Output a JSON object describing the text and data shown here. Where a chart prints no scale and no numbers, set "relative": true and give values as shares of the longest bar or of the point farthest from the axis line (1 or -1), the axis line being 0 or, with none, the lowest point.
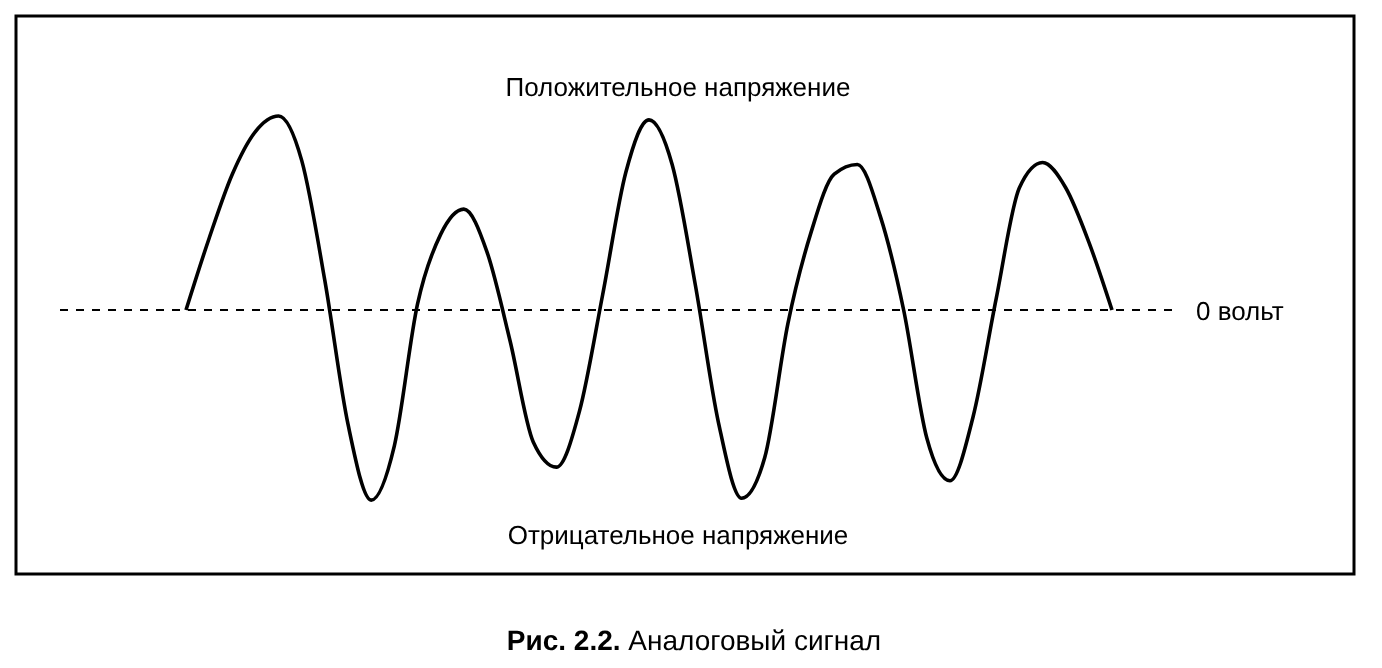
{
  "chart_data": {
    "type": "line",
    "relative": true,
    "title": "Рис. 2.2. Аналоговый сигнал",
    "categories": [
      null,
      null,
      null,
      null,
      null,
      null,
      null,
      null,
      null,
      null,
      null,
      null,
      null,
      null,
      null,
      null,
      null,
      null,
      null,
      null,
      null,
      null,
      null,
      null,
      null,
      null,
      null,
      null,
      null,
      null,
      null,
      null,
      null,
      null,
      null,
      null,
      null,
      null,
      null,
      null,
      null
    ],
    "series": [
      {
        "color": "#000000",
        "values": [
          0,
          0.37,
          0.7,
          0.92,
          1,
          0.77,
          0.15,
          -0.59,
          -0.98,
          -0.7,
          0.03,
          0.39,
          0.52,
          0.3,
          -0.16,
          -0.68,
          -0.81,
          -0.52,
          0.08,
          0.71,
          0.98,
          0.75,
          0.13,
          -0.58,
          -0.97,
          -0.76,
          -0.07,
          0.4,
          0.7,
          0.75,
          0.48,
          0,
          -0.66,
          -0.88,
          -0.55,
          0.06,
          0.63,
          0.76,
          0.63,
          0.35,
          0
        ]
      }
    ],
    "ref_lines": [
      {
        "axis": "y",
        "value": 0,
        "label": "0 вольт",
        "line_style": "dashed",
        "color": "#000000"
      }
    ],
    "annotations": [
      "Положительное напряжение",
      "Отрицательное напряжение"
    ]
  }
}
